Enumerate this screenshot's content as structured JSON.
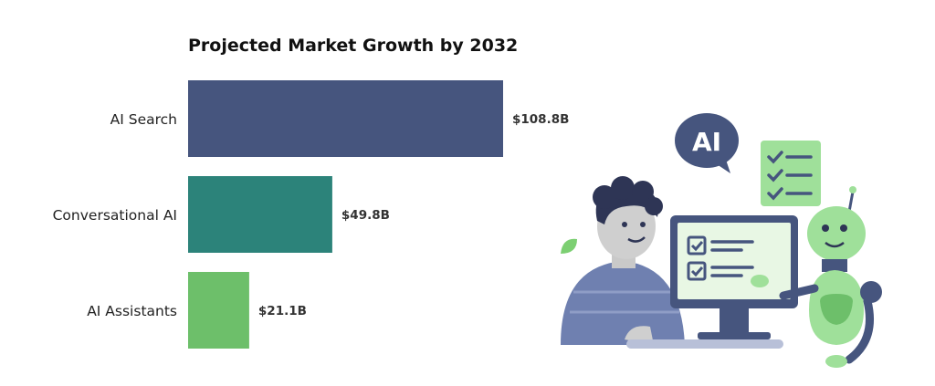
{
  "chart_data": {
    "type": "bar",
    "orientation": "horizontal",
    "title": "Projected Market Growth by 2032",
    "categories": [
      "AI Search",
      "Conversational AI",
      "AI Assistants"
    ],
    "values": [
      108.8,
      49.8,
      21.1
    ],
    "value_labels": [
      "$108.8B",
      "$49.8B",
      "$21.1B"
    ],
    "colors": [
      "#46557e",
      "#2c837a",
      "#6dbf6a"
    ],
    "xlim": [
      0,
      108.8
    ],
    "grid": false,
    "legend": "none"
  },
  "illustration": {
    "speech_bubble_text": "AI",
    "icons": [
      "person-icon",
      "robot-icon",
      "monitor-icon",
      "checklist-icon",
      "speech-bubble-icon"
    ]
  }
}
